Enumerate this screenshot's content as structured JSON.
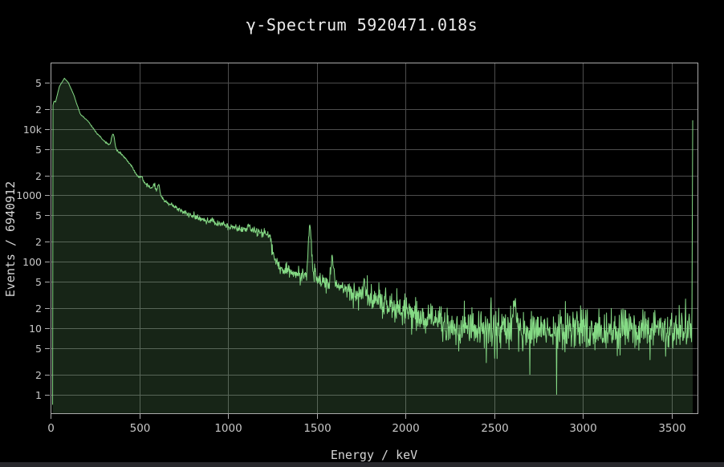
{
  "window": {
    "background_color": "#000000",
    "bottom_bar_color": "#28282c"
  },
  "chart_data": {
    "type": "area",
    "title": "γ-Spectrum 5920471.018s",
    "xlabel": "Energy / keV",
    "ylabel": "Events / 6940912",
    "x_range": [
      0,
      3645
    ],
    "y_scale": "log",
    "y_range": [
      0.52,
      100000
    ],
    "grid": true,
    "legend": "none",
    "x_ticks": [
      {
        "v": 0,
        "label": "0"
      },
      {
        "v": 500,
        "label": "500"
      },
      {
        "v": 1000,
        "label": "1000"
      },
      {
        "v": 1500,
        "label": "1500"
      },
      {
        "v": 2000,
        "label": "2000"
      },
      {
        "v": 2500,
        "label": "2500"
      },
      {
        "v": 3000,
        "label": "3000"
      },
      {
        "v": 3500,
        "label": "3500"
      }
    ],
    "y_ticks": [
      {
        "v": 1,
        "label": "1"
      },
      {
        "v": 2,
        "label": "2"
      },
      {
        "v": 5,
        "label": "5"
      },
      {
        "v": 10,
        "label": "10"
      },
      {
        "v": 20,
        "label": "2"
      },
      {
        "v": 50,
        "label": "5"
      },
      {
        "v": 100,
        "label": "100"
      },
      {
        "v": 200,
        "label": "2"
      },
      {
        "v": 500,
        "label": "5"
      },
      {
        "v": 1000,
        "label": "1000"
      },
      {
        "v": 2000,
        "label": "2"
      },
      {
        "v": 5000,
        "label": "5"
      },
      {
        "v": 10000,
        "label": "10k"
      },
      {
        "v": 20000,
        "label": "2"
      },
      {
        "v": 50000,
        "label": "5"
      }
    ],
    "colors": {
      "line": "#85da85",
      "fill": "rgba(134,218,134,0.17)",
      "grid": "#4d4d4d",
      "frame": "#aaaaaa",
      "tick_text": "#c8c8c8",
      "title_text": "#ebebeb",
      "axis_label_text": "#d5d5d5"
    },
    "spectrum": {
      "bin_width_kev": 2.25,
      "data_start_kev": 11.5,
      "data_end_kev": 3615,
      "backbone": [
        [
          11.5,
          0.55
        ],
        [
          12.5,
          22000
        ],
        [
          20,
          26500
        ],
        [
          28,
          25500
        ],
        [
          50,
          44000
        ],
        [
          78,
          58000
        ],
        [
          100,
          50000
        ],
        [
          130,
          33000
        ],
        [
          167,
          16800
        ],
        [
          213,
          13000
        ],
        [
          258,
          8800
        ],
        [
          310,
          6300
        ],
        [
          400,
          4200
        ],
        [
          450,
          2900
        ],
        [
          500,
          1800
        ],
        [
          560,
          1350
        ],
        [
          650,
          800
        ],
        [
          750,
          560
        ],
        [
          850,
          430
        ],
        [
          950,
          360
        ],
        [
          1050,
          320
        ],
        [
          1150,
          290
        ],
        [
          1235,
          255
        ],
        [
          1260,
          110
        ],
        [
          1290,
          80
        ],
        [
          1400,
          62
        ],
        [
          1461,
          58
        ],
        [
          1540,
          50
        ],
        [
          1650,
          40
        ],
        [
          1760,
          30
        ],
        [
          1900,
          22
        ],
        [
          2100,
          15
        ],
        [
          2300,
          11
        ],
        [
          2450,
          9.5
        ],
        [
          3620,
          9.5
        ]
      ],
      "peaks": [
        {
          "center": 352,
          "amp": 3200,
          "sigma": 8
        },
        {
          "center": 511,
          "amp": 260,
          "sigma": 6
        },
        {
          "center": 583,
          "amp": 300,
          "sigma": 6
        },
        {
          "center": 609,
          "amp": 420,
          "sigma": 6
        },
        {
          "center": 911,
          "amp": 55,
          "sigma": 7
        },
        {
          "center": 969,
          "amp": 35,
          "sigma": 7
        },
        {
          "center": 1120,
          "amp": 60,
          "sigma": 7
        },
        {
          "center": 1461,
          "amp": 285,
          "sigma": 7
        },
        {
          "center": 1588,
          "amp": 68,
          "sigma": 7
        },
        {
          "center": 1764,
          "amp": 14,
          "sigma": 8
        },
        {
          "center": 2614,
          "amp": 13,
          "sigma": 9
        }
      ],
      "dips": [
        [
          2455,
          3
        ],
        [
          2700,
          2
        ],
        [
          2852,
          1
        ]
      ],
      "overflow_bin": {
        "energy": 3618,
        "counts": 13500
      },
      "noise_model": "poisson",
      "noise_scale": 1.15,
      "seed": 12
    }
  }
}
